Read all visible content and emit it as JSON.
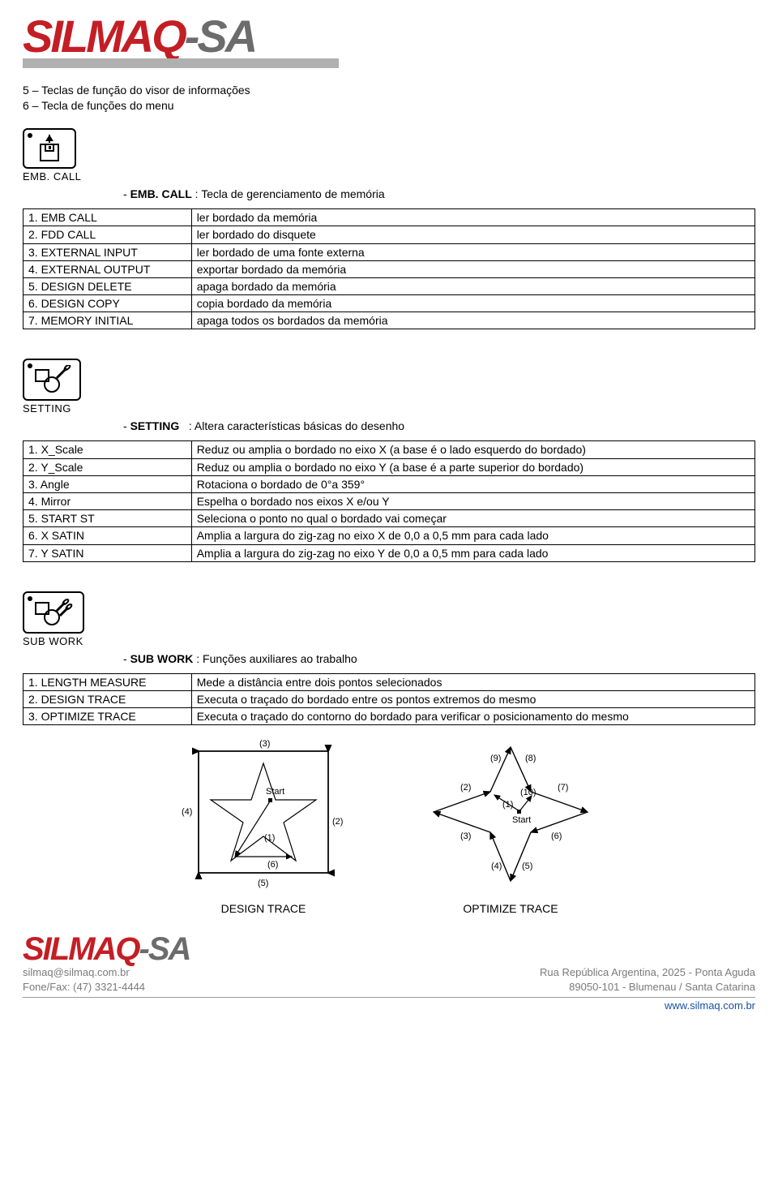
{
  "logo": {
    "part1": "SILMAQ",
    "part2": "-SA"
  },
  "intro": {
    "line1": "5 – Teclas de função do visor de informações",
    "line2": "6 – Tecla de funções do menu"
  },
  "sections": {
    "embcall": {
      "icon_label": "EMB. CALL",
      "head_prefix": "- ",
      "head_bold": "EMB. CALL",
      "head_rest": " : Tecla de gerenciamento de memória",
      "rows": [
        [
          "1. EMB CALL",
          "ler bordado da memória"
        ],
        [
          "2. FDD CALL",
          "ler bordado do disquete"
        ],
        [
          "3. EXTERNAL INPUT",
          "ler bordado de uma fonte externa"
        ],
        [
          "4. EXTERNAL OUTPUT",
          "exportar bordado da memória"
        ],
        [
          "5. DESIGN DELETE",
          "apaga bordado da memória"
        ],
        [
          "6. DESIGN COPY",
          "copia bordado da memória"
        ],
        [
          "7. MEMORY INITIAL",
          "apaga todos os bordados da memória"
        ]
      ]
    },
    "setting": {
      "icon_label": "SETTING",
      "head_prefix": "- ",
      "head_bold": "SETTING",
      "head_rest": "   : Altera características básicas do desenho",
      "rows": [
        [
          "1. X_Scale",
          "Reduz ou amplia o bordado no eixo X (a base é o lado esquerdo do bordado)"
        ],
        [
          "2. Y_Scale",
          "Reduz ou amplia o bordado no eixo Y (a base é a parte superior do bordado)"
        ],
        [
          "3. Angle",
          "Rotaciona o bordado de 0°a 359°"
        ],
        [
          "4. Mirror",
          "Espelha o bordado nos eixos X e/ou Y"
        ],
        [
          "5. START ST",
          "Seleciona o ponto no qual o bordado vai começar"
        ],
        [
          "6. X SATIN",
          "Amplia a largura do zig-zag no eixo X de 0,0 a 0,5 mm para cada lado"
        ],
        [
          "7. Y SATIN",
          "Amplia a largura do zig-zag no eixo Y de 0,0 a 0,5 mm para cada lado"
        ]
      ]
    },
    "subwork": {
      "icon_label": "SUB WORK",
      "head_prefix": "- ",
      "head_bold": "SUB WORK",
      "head_rest": " : Funções auxiliares ao trabalho",
      "rows": [
        [
          "1. LENGTH MEASURE",
          "Mede a distância entre dois pontos selecionados"
        ],
        [
          "2. DESIGN TRACE",
          "Executa o traçado do bordado entre os pontos extremos do mesmo"
        ],
        [
          "3. OPTIMIZE TRACE",
          "Executa o traçado do contorno do bordado para verificar o posicionamento do mesmo"
        ]
      ]
    }
  },
  "diagrams": {
    "left_caption": "DESIGN TRACE",
    "right_caption": "OPTIMIZE TRACE",
    "left": {
      "labels": {
        "top": "(3)",
        "left": "(4)",
        "right": "(2)",
        "inner1": "(1)",
        "inner6": "(6)",
        "bottom": "(5)",
        "start": "Start"
      }
    },
    "right": {
      "labels": {
        "l1": "(1)",
        "l2": "(2)",
        "l3": "(3)",
        "l4": "(4)",
        "l5": "(5)",
        "l6": "(6)",
        "l7": "(7)",
        "l8": "(8)",
        "l9": "(9)",
        "l10": "(10)",
        "start": "Start"
      }
    }
  },
  "footer": {
    "email": "silmaq@silmaq.com.br",
    "phone_label": "Fone/Fax: (47) 3321-4444",
    "addr1": "Rua República Argentina, 2025 - Ponta Aguda",
    "addr2": "89050-101 - Blumenau / Santa Catarina",
    "url": "www.silmaq.com.br"
  },
  "style": {
    "brand_red": "#c41e25",
    "brand_grey": "#6c6c6c",
    "text_muted": "#7a7a7a",
    "link_blue": "#1a4fa3"
  }
}
